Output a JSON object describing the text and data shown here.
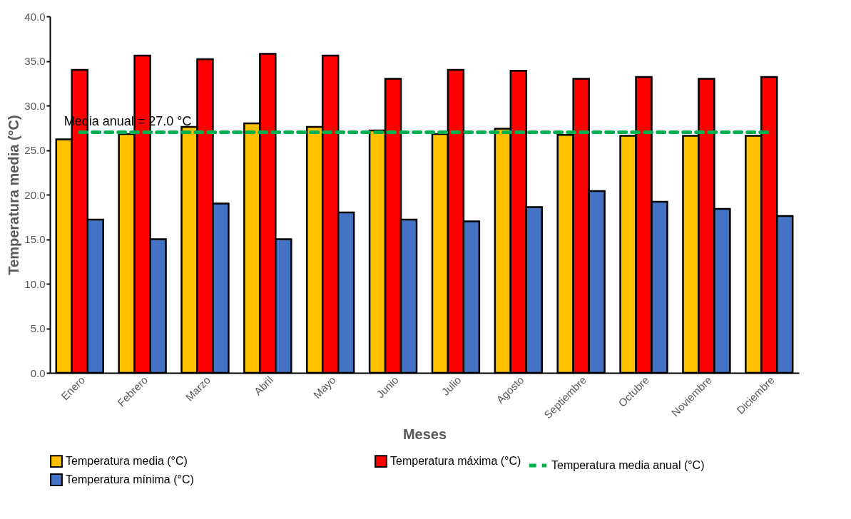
{
  "chart_data": {
    "type": "bar",
    "xlabel": "Meses",
    "ylabel": "Temperatura media  (°C)",
    "categories": [
      "Enero",
      "Febrero",
      "Marzo",
      "Abril",
      "Mayo",
      "Junio",
      "Julio",
      "Agosto",
      "Septiembre",
      "Octubre",
      "Noviembre",
      "Diciembre"
    ],
    "series": [
      {
        "name": "Temperatura media (°C)",
        "color": "#ffc000",
        "values": [
          26.2,
          26.8,
          27.6,
          28.0,
          27.6,
          27.2,
          26.8,
          27.4,
          26.7,
          26.6,
          26.6,
          26.6
        ]
      },
      {
        "name": "Temperatura máxima (°C)",
        "color": "#ff0000",
        "values": [
          34.0,
          35.6,
          35.2,
          35.8,
          35.6,
          33.0,
          34.0,
          33.9,
          33.0,
          33.2,
          33.0,
          33.2
        ]
      },
      {
        "name": "Temperatura mínima (°C)",
        "color": "#4472c4",
        "values": [
          17.2,
          15.0,
          19.0,
          15.0,
          18.0,
          17.2,
          17.0,
          18.6,
          20.4,
          19.2,
          18.4,
          17.6
        ]
      },
      {
        "name": "Temperatura media anual (°C)",
        "type": "line",
        "line_style": "dashed",
        "color": "#00b050",
        "values": [
          27.0,
          27.0,
          27.0,
          27.0,
          27.0,
          27.0,
          27.0,
          27.0,
          27.0,
          27.0,
          27.0,
          27.0
        ]
      }
    ],
    "annotations": [
      {
        "text": "Media anual = 27.0 °C",
        "x": "Enero",
        "y": 27.0
      }
    ],
    "ylim": [
      0,
      40
    ],
    "yticks": [
      {
        "value": 0,
        "label": "0.0"
      },
      {
        "value": 5,
        "label": "5.0"
      },
      {
        "value": 10,
        "label": "10.0"
      },
      {
        "value": 15,
        "label": "15.0"
      },
      {
        "value": 20,
        "label": "20.0"
      },
      {
        "value": 25,
        "label": "25.0"
      },
      {
        "value": 30,
        "label": "30.0"
      },
      {
        "value": 35,
        "label": "35.0"
      },
      {
        "value": 40,
        "label": "40.0"
      }
    ],
    "grid": false,
    "legend": "bottom"
  }
}
